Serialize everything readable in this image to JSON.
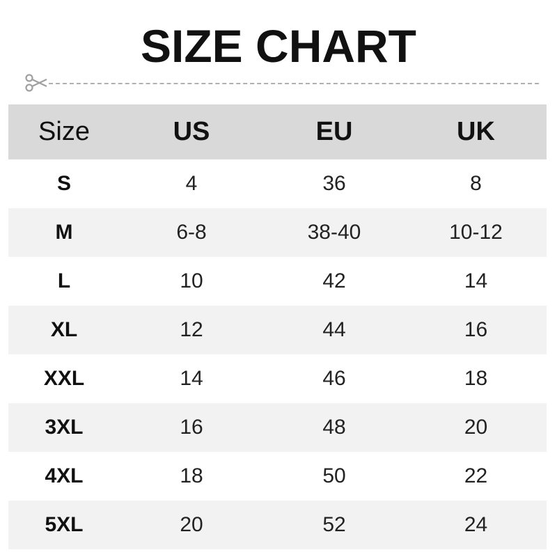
{
  "title": "SIZE CHART",
  "headers": [
    "Size",
    "US",
    "EU",
    "UK"
  ],
  "rows": [
    [
      "S",
      "4",
      "36",
      "8"
    ],
    [
      "M",
      "6-8",
      "38-40",
      "10-12"
    ],
    [
      "L",
      "10",
      "42",
      "14"
    ],
    [
      "XL",
      "12",
      "44",
      "16"
    ],
    [
      "XXL",
      "14",
      "46",
      "18"
    ],
    [
      "3XL",
      "16",
      "48",
      "20"
    ],
    [
      "4XL",
      "18",
      "50",
      "22"
    ],
    [
      "5XL",
      "20",
      "52",
      "24"
    ]
  ],
  "colors": {
    "header_bg": "#d9d9d9",
    "alt_row_bg": "#f2f2f2",
    "divider": "#b0b0b0"
  },
  "icons": {
    "cut_line": "scissors-icon"
  }
}
